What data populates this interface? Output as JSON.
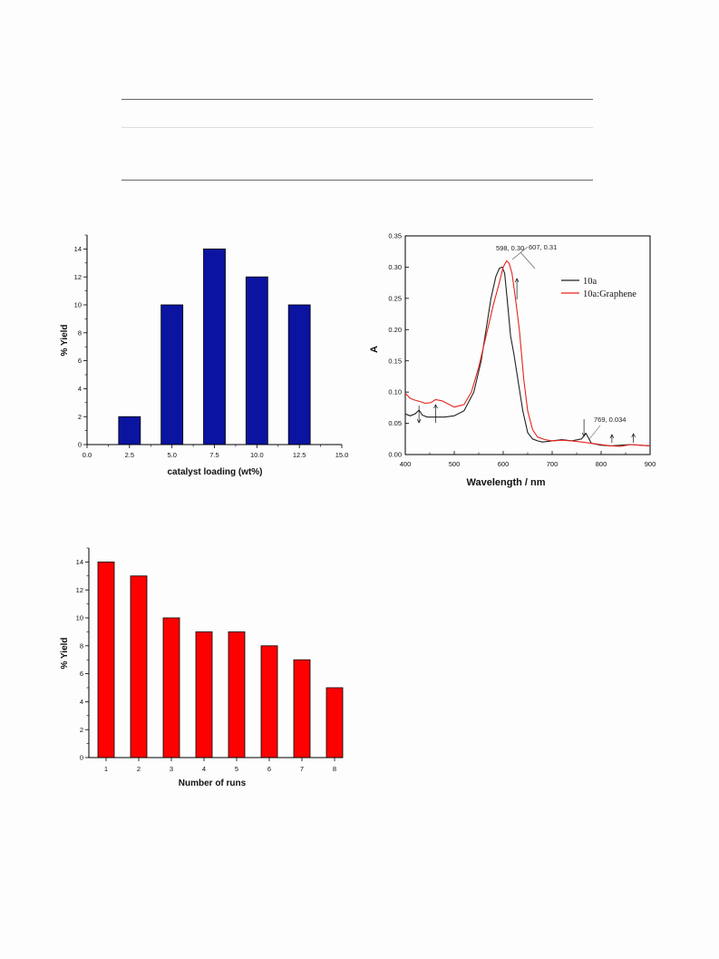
{
  "chart_data": [
    {
      "type": "bar",
      "xlabel": "catalyst loading (wt%)",
      "ylabel": "% Yield",
      "x": [
        2.5,
        5.0,
        7.5,
        10.0,
        12.5
      ],
      "values": [
        2,
        10,
        14,
        12,
        10
      ],
      "xlim": [
        0,
        15
      ],
      "ylim": [
        0,
        15
      ],
      "xticks": [
        "0.0",
        "2.5",
        "5.0",
        "7.5",
        "10.0",
        "12.5",
        "15.0"
      ],
      "yticks": [
        "0",
        "2",
        "4",
        "6",
        "8",
        "10",
        "12",
        "14"
      ],
      "color": "#0a14a0"
    },
    {
      "type": "line",
      "xlabel": "Wavelength / nm",
      "ylabel": "A",
      "xlim": [
        400,
        900
      ],
      "ylim": [
        0,
        0.35
      ],
      "xticks": [
        "400",
        "500",
        "600",
        "700",
        "800",
        "900"
      ],
      "yticks": [
        "0.00",
        "0.05",
        "0.10",
        "0.15",
        "0.20",
        "0.25",
        "0.30",
        "0.35"
      ],
      "legend_position": "top-right",
      "series": [
        {
          "name": "10a",
          "color": "#222222",
          "x": [
            400,
            410,
            420,
            428,
            435,
            445,
            460,
            480,
            500,
            520,
            540,
            555,
            565,
            575,
            585,
            592,
            598,
            603,
            608,
            615,
            622,
            630,
            640,
            650,
            660,
            670,
            680,
            700,
            720,
            740,
            760,
            769,
            780,
            800,
            820,
            840,
            860,
            880,
            900
          ],
          "y": [
            0.065,
            0.062,
            0.065,
            0.071,
            0.063,
            0.06,
            0.06,
            0.06,
            0.062,
            0.07,
            0.1,
            0.15,
            0.2,
            0.25,
            0.285,
            0.298,
            0.3,
            0.29,
            0.25,
            0.19,
            0.16,
            0.12,
            0.07,
            0.035,
            0.025,
            0.022,
            0.02,
            0.022,
            0.024,
            0.022,
            0.025,
            0.034,
            0.018,
            0.015,
            0.014,
            0.015,
            0.016,
            0.015,
            0.014
          ]
        },
        {
          "name": "10a:Graphene",
          "color": "#e8231e",
          "x": [
            400,
            410,
            420,
            430,
            440,
            452,
            462,
            475,
            490,
            500,
            520,
            535,
            550,
            565,
            580,
            592,
            600,
            607,
            612,
            618,
            625,
            633,
            642,
            650,
            660,
            670,
            685,
            700,
            720,
            740,
            760,
            780,
            800,
            820,
            840,
            860,
            880,
            900
          ],
          "y": [
            0.098,
            0.09,
            0.087,
            0.085,
            0.082,
            0.083,
            0.088,
            0.086,
            0.08,
            0.076,
            0.08,
            0.1,
            0.14,
            0.19,
            0.24,
            0.275,
            0.3,
            0.31,
            0.306,
            0.29,
            0.25,
            0.2,
            0.12,
            0.07,
            0.04,
            0.028,
            0.024,
            0.022,
            0.023,
            0.022,
            0.02,
            0.018,
            0.016,
            0.014,
            0.013,
            0.016,
            0.015,
            0.014
          ]
        }
      ],
      "annotations": [
        {
          "text": "598, 0.30",
          "x": 598,
          "y": 0.3
        },
        {
          "text": "607, 0.31",
          "x": 607,
          "y": 0.31
        },
        {
          "text": "769, 0.034",
          "x": 769,
          "y": 0.034
        }
      ],
      "arrows": [
        {
          "direction": "down",
          "x": 428
        },
        {
          "direction": "up",
          "x": 462
        },
        {
          "direction": "up",
          "x": 628
        },
        {
          "direction": "down",
          "x": 765
        },
        {
          "direction": "up",
          "x": 822
        },
        {
          "direction": "up",
          "x": 866
        }
      ]
    },
    {
      "type": "bar",
      "xlabel": "Number of runs",
      "ylabel": "% Yield",
      "categories": [
        "1",
        "2",
        "3",
        "4",
        "5",
        "6",
        "7",
        "8"
      ],
      "values": [
        14,
        13,
        10,
        9,
        9,
        8,
        7,
        5
      ],
      "ylim": [
        0,
        15
      ],
      "yticks": [
        "0",
        "2",
        "4",
        "6",
        "8",
        "10",
        "12",
        "14"
      ],
      "color": "#ff0000"
    }
  ]
}
